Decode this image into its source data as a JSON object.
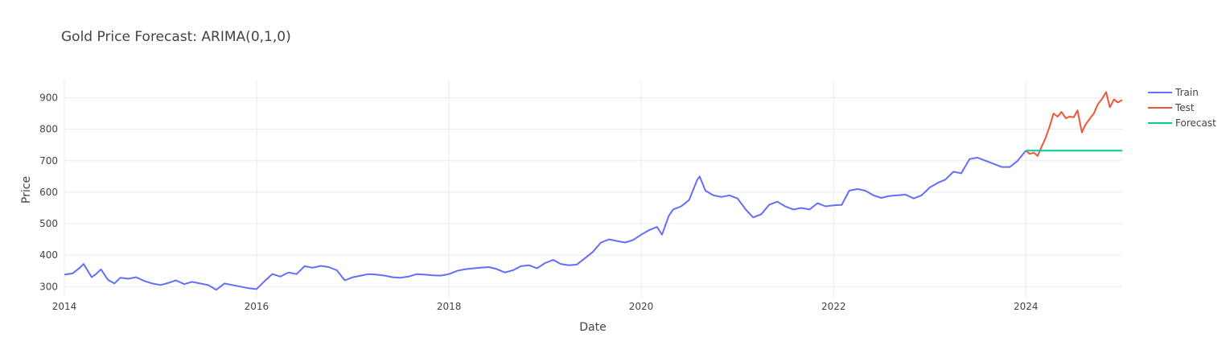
{
  "chart_data": {
    "type": "line",
    "title": "Gold Price Forecast: ARIMA(0,1,0)",
    "xlabel": "Date",
    "ylabel": "Price",
    "x_range": [
      "2014-01-01",
      "2025-01-01"
    ],
    "ylim": [
      265,
      955
    ],
    "x_ticks": [
      "2014",
      "2016",
      "2018",
      "2020",
      "2022",
      "2024"
    ],
    "x_tick_dates": [
      "2014-01-01",
      "2016-01-01",
      "2018-01-01",
      "2020-01-01",
      "2022-01-01",
      "2024-01-01"
    ],
    "y_ticks": [
      300,
      400,
      500,
      600,
      700,
      800,
      900
    ],
    "grid": true,
    "legend_position": "top-right",
    "series": [
      {
        "name": "Train",
        "color": "#636efa",
        "points": [
          [
            "2014-01-01",
            338
          ],
          [
            "2014-02-01",
            342
          ],
          [
            "2014-03-01",
            360
          ],
          [
            "2014-03-15",
            372
          ],
          [
            "2014-04-15",
            330
          ],
          [
            "2014-05-01",
            340
          ],
          [
            "2014-05-20",
            355
          ],
          [
            "2014-06-15",
            322
          ],
          [
            "2014-07-10",
            310
          ],
          [
            "2014-08-01",
            328
          ],
          [
            "2014-09-01",
            325
          ],
          [
            "2014-10-01",
            330
          ],
          [
            "2014-11-01",
            318
          ],
          [
            "2014-12-01",
            310
          ],
          [
            "2015-01-01",
            305
          ],
          [
            "2015-02-01",
            312
          ],
          [
            "2015-03-01",
            320
          ],
          [
            "2015-04-01",
            308
          ],
          [
            "2015-05-01",
            315
          ],
          [
            "2015-06-01",
            310
          ],
          [
            "2015-07-01",
            305
          ],
          [
            "2015-08-01",
            290
          ],
          [
            "2015-09-01",
            310
          ],
          [
            "2015-10-01",
            305
          ],
          [
            "2015-11-01",
            300
          ],
          [
            "2015-12-01",
            295
          ],
          [
            "2016-01-01",
            292
          ],
          [
            "2016-02-01",
            318
          ],
          [
            "2016-03-01",
            340
          ],
          [
            "2016-04-01",
            332
          ],
          [
            "2016-05-01",
            345
          ],
          [
            "2016-06-01",
            340
          ],
          [
            "2016-07-01",
            365
          ],
          [
            "2016-08-01",
            360
          ],
          [
            "2016-09-01",
            366
          ],
          [
            "2016-10-01",
            362
          ],
          [
            "2016-11-01",
            352
          ],
          [
            "2016-12-01",
            320
          ],
          [
            "2017-01-01",
            330
          ],
          [
            "2017-02-01",
            335
          ],
          [
            "2017-03-01",
            340
          ],
          [
            "2017-04-01",
            338
          ],
          [
            "2017-05-01",
            335
          ],
          [
            "2017-06-01",
            330
          ],
          [
            "2017-07-01",
            328
          ],
          [
            "2017-08-01",
            332
          ],
          [
            "2017-09-01",
            340
          ],
          [
            "2017-10-01",
            338
          ],
          [
            "2017-11-01",
            336
          ],
          [
            "2017-12-01",
            335
          ],
          [
            "2018-01-01",
            340
          ],
          [
            "2018-02-01",
            350
          ],
          [
            "2018-03-01",
            355
          ],
          [
            "2018-04-01",
            358
          ],
          [
            "2018-05-01",
            360
          ],
          [
            "2018-06-01",
            362
          ],
          [
            "2018-07-01",
            356
          ],
          [
            "2018-08-01",
            345
          ],
          [
            "2018-09-01",
            352
          ],
          [
            "2018-10-01",
            365
          ],
          [
            "2018-11-01",
            368
          ],
          [
            "2018-12-01",
            358
          ],
          [
            "2019-01-01",
            375
          ],
          [
            "2019-02-01",
            385
          ],
          [
            "2019-03-01",
            372
          ],
          [
            "2019-04-01",
            368
          ],
          [
            "2019-05-01",
            370
          ],
          [
            "2019-06-01",
            390
          ],
          [
            "2019-07-01",
            410
          ],
          [
            "2019-08-01",
            440
          ],
          [
            "2019-09-01",
            450
          ],
          [
            "2019-10-01",
            445
          ],
          [
            "2019-11-01",
            440
          ],
          [
            "2019-12-01",
            448
          ],
          [
            "2020-01-01",
            465
          ],
          [
            "2020-02-01",
            480
          ],
          [
            "2020-03-01",
            490
          ],
          [
            "2020-03-20",
            465
          ],
          [
            "2020-04-15",
            525
          ],
          [
            "2020-05-01",
            545
          ],
          [
            "2020-06-01",
            555
          ],
          [
            "2020-07-01",
            575
          ],
          [
            "2020-08-01",
            640
          ],
          [
            "2020-08-10",
            650
          ],
          [
            "2020-09-01",
            605
          ],
          [
            "2020-10-01",
            590
          ],
          [
            "2020-11-01",
            585
          ],
          [
            "2020-12-01",
            590
          ],
          [
            "2021-01-01",
            580
          ],
          [
            "2021-02-01",
            545
          ],
          [
            "2021-03-01",
            520
          ],
          [
            "2021-04-01",
            530
          ],
          [
            "2021-05-01",
            560
          ],
          [
            "2021-06-01",
            570
          ],
          [
            "2021-07-01",
            555
          ],
          [
            "2021-08-01",
            545
          ],
          [
            "2021-09-01",
            550
          ],
          [
            "2021-10-01",
            545
          ],
          [
            "2021-11-01",
            565
          ],
          [
            "2021-12-01",
            555
          ],
          [
            "2022-01-01",
            558
          ],
          [
            "2022-02-01",
            560
          ],
          [
            "2022-03-01",
            605
          ],
          [
            "2022-04-01",
            610
          ],
          [
            "2022-05-01",
            605
          ],
          [
            "2022-06-01",
            590
          ],
          [
            "2022-07-01",
            582
          ],
          [
            "2022-08-01",
            588
          ],
          [
            "2022-09-01",
            590
          ],
          [
            "2022-10-01",
            592
          ],
          [
            "2022-11-01",
            580
          ],
          [
            "2022-12-01",
            590
          ],
          [
            "2023-01-01",
            615
          ],
          [
            "2023-02-01",
            630
          ],
          [
            "2023-03-01",
            640
          ],
          [
            "2023-04-01",
            665
          ],
          [
            "2023-05-01",
            660
          ],
          [
            "2023-06-01",
            705
          ],
          [
            "2023-07-01",
            710
          ],
          [
            "2023-08-01",
            700
          ],
          [
            "2023-09-01",
            690
          ],
          [
            "2023-10-01",
            680
          ],
          [
            "2023-11-01",
            680
          ],
          [
            "2023-12-01",
            700
          ],
          [
            "2024-01-01",
            732
          ]
        ]
      },
      {
        "name": "Test",
        "color": "#ef553b",
        "points": [
          [
            "2024-01-01",
            732
          ],
          [
            "2024-01-15",
            722
          ],
          [
            "2024-02-01",
            725
          ],
          [
            "2024-02-15",
            715
          ],
          [
            "2024-03-01",
            745
          ],
          [
            "2024-03-15",
            770
          ],
          [
            "2024-04-01",
            810
          ],
          [
            "2024-04-15",
            850
          ],
          [
            "2024-05-01",
            840
          ],
          [
            "2024-05-15",
            855
          ],
          [
            "2024-06-01",
            835
          ],
          [
            "2024-06-15",
            840
          ],
          [
            "2024-07-01",
            838
          ],
          [
            "2024-07-15",
            860
          ],
          [
            "2024-08-01",
            790
          ],
          [
            "2024-08-15",
            815
          ],
          [
            "2024-09-01",
            835
          ],
          [
            "2024-09-15",
            850
          ],
          [
            "2024-10-01",
            880
          ],
          [
            "2024-10-15",
            895
          ],
          [
            "2024-11-01",
            918
          ],
          [
            "2024-11-15",
            870
          ],
          [
            "2024-12-01",
            895
          ],
          [
            "2024-12-15",
            885
          ],
          [
            "2025-01-01",
            893
          ]
        ]
      },
      {
        "name": "Forecast",
        "color": "#00cc96",
        "points": [
          [
            "2024-01-01",
            732
          ],
          [
            "2025-01-01",
            732
          ]
        ]
      }
    ]
  }
}
